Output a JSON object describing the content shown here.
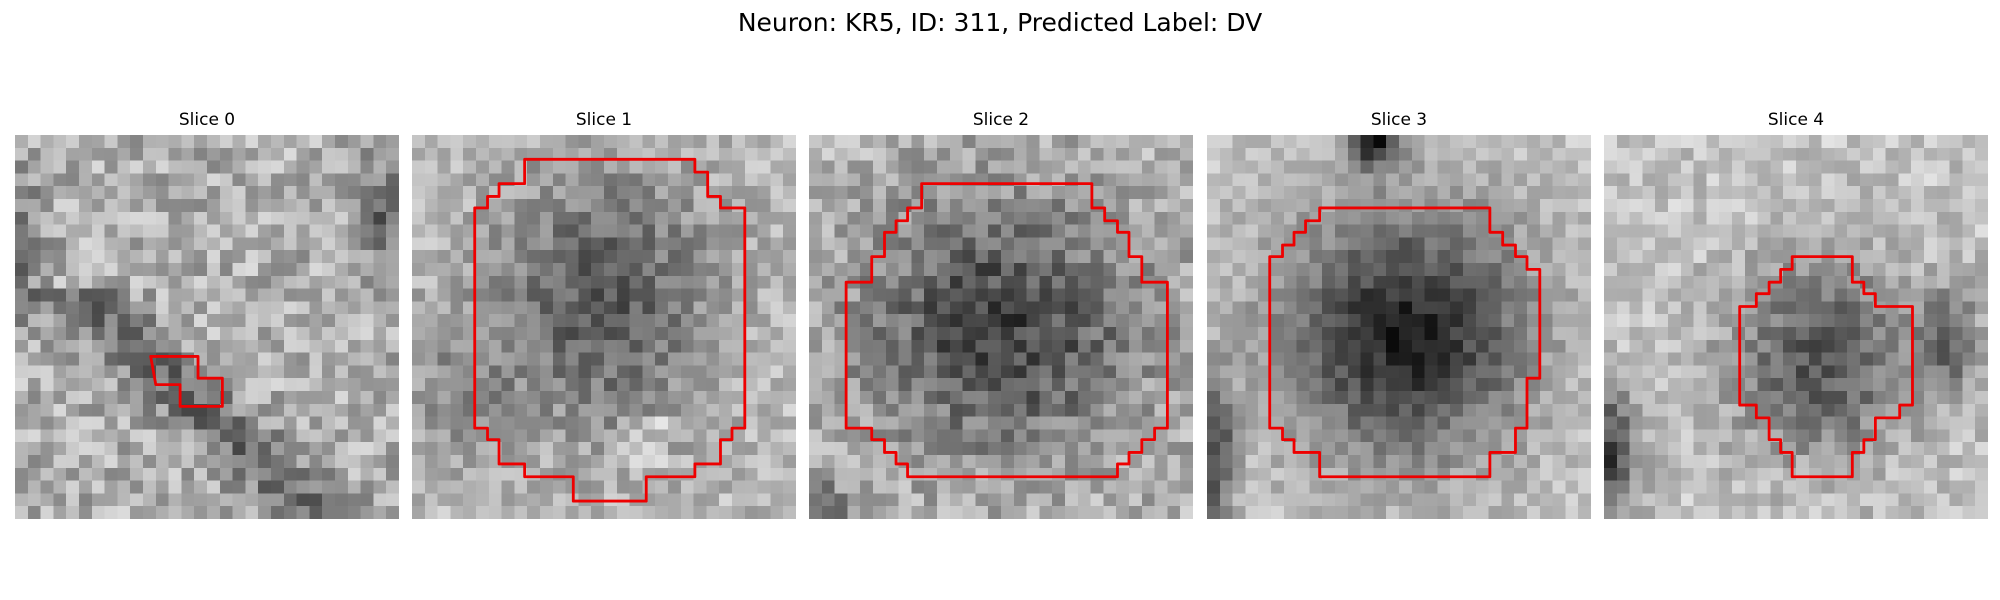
{
  "figure": {
    "title": "Neuron: KR5, ID: 311, Predicted Label: DV",
    "contour_color": "#ee0000"
  },
  "panels": [
    {
      "title": "Slice 0"
    },
    {
      "title": "Slice 1"
    },
    {
      "title": "Slice 2"
    },
    {
      "title": "Slice 3"
    },
    {
      "title": "Slice 4"
    }
  ]
}
